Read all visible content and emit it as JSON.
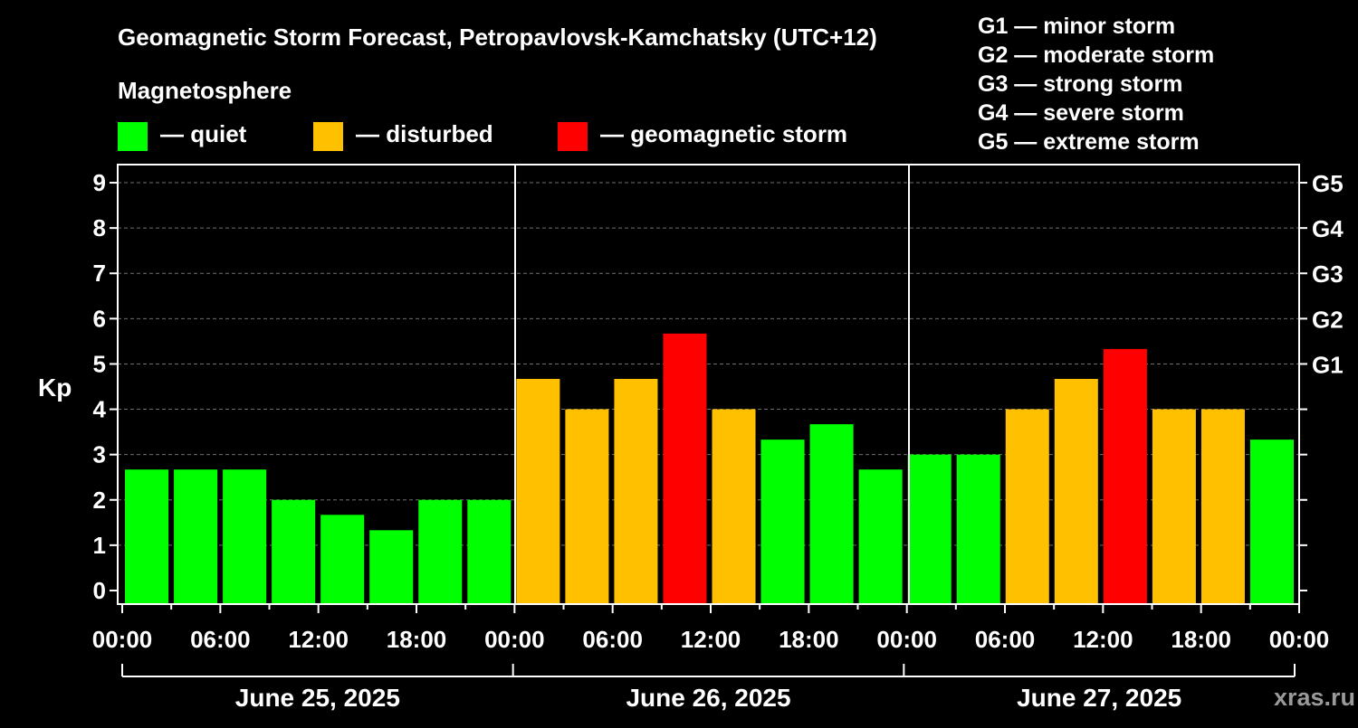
{
  "chart_data": {
    "type": "bar",
    "title": "Geomagnetic Storm Forecast, Petropavlovsk-Kamchatsky (UTC+12)",
    "legend": {
      "heading": "Magnetosphere",
      "entries": [
        {
          "label": "— quiet",
          "color": "#00ff00"
        },
        {
          "label": "— disturbed",
          "color": "#ffc000"
        },
        {
          "label": "— geomagnetic storm",
          "color": "#ff0000"
        }
      ]
    },
    "storm_scale": [
      "G1 — minor storm",
      "G2 — moderate storm",
      "G3 — strong storm",
      "G4 — severe storm",
      "G5 — extreme storm"
    ],
    "ylabel": "Kp",
    "ylim": [
      -0.3,
      9.4
    ],
    "y_ticks": [
      "0",
      "1",
      "2",
      "3",
      "4",
      "5",
      "6",
      "7",
      "8",
      "9"
    ],
    "right_ticks": [
      {
        "kp": 5,
        "label": "G1"
      },
      {
        "kp": 6,
        "label": "G2"
      },
      {
        "kp": 7,
        "label": "G3"
      },
      {
        "kp": 8,
        "label": "G4"
      },
      {
        "kp": 9,
        "label": "G5"
      }
    ],
    "x_tick_labels": [
      "00:00",
      "06:00",
      "12:00",
      "18:00",
      "00:00",
      "06:00",
      "12:00",
      "18:00",
      "00:00",
      "06:00",
      "12:00",
      "18:00",
      "00:00"
    ],
    "days": [
      "June 25, 2025",
      "June 26, 2025",
      "June 27, 2025"
    ],
    "thresholds": {
      "disturbed": 4,
      "storm": 5
    },
    "colors": {
      "quiet": "#00ff00",
      "disturbed": "#ffc000",
      "storm": "#ff0000"
    },
    "values": [
      2.67,
      2.67,
      2.67,
      2.0,
      1.67,
      1.33,
      2.0,
      2.0,
      4.67,
      4.0,
      4.67,
      5.67,
      4.0,
      3.33,
      3.67,
      2.67,
      3.0,
      3.0,
      4.0,
      4.67,
      5.33,
      4.0,
      4.0,
      3.33
    ],
    "watermark": "xras.ru"
  }
}
